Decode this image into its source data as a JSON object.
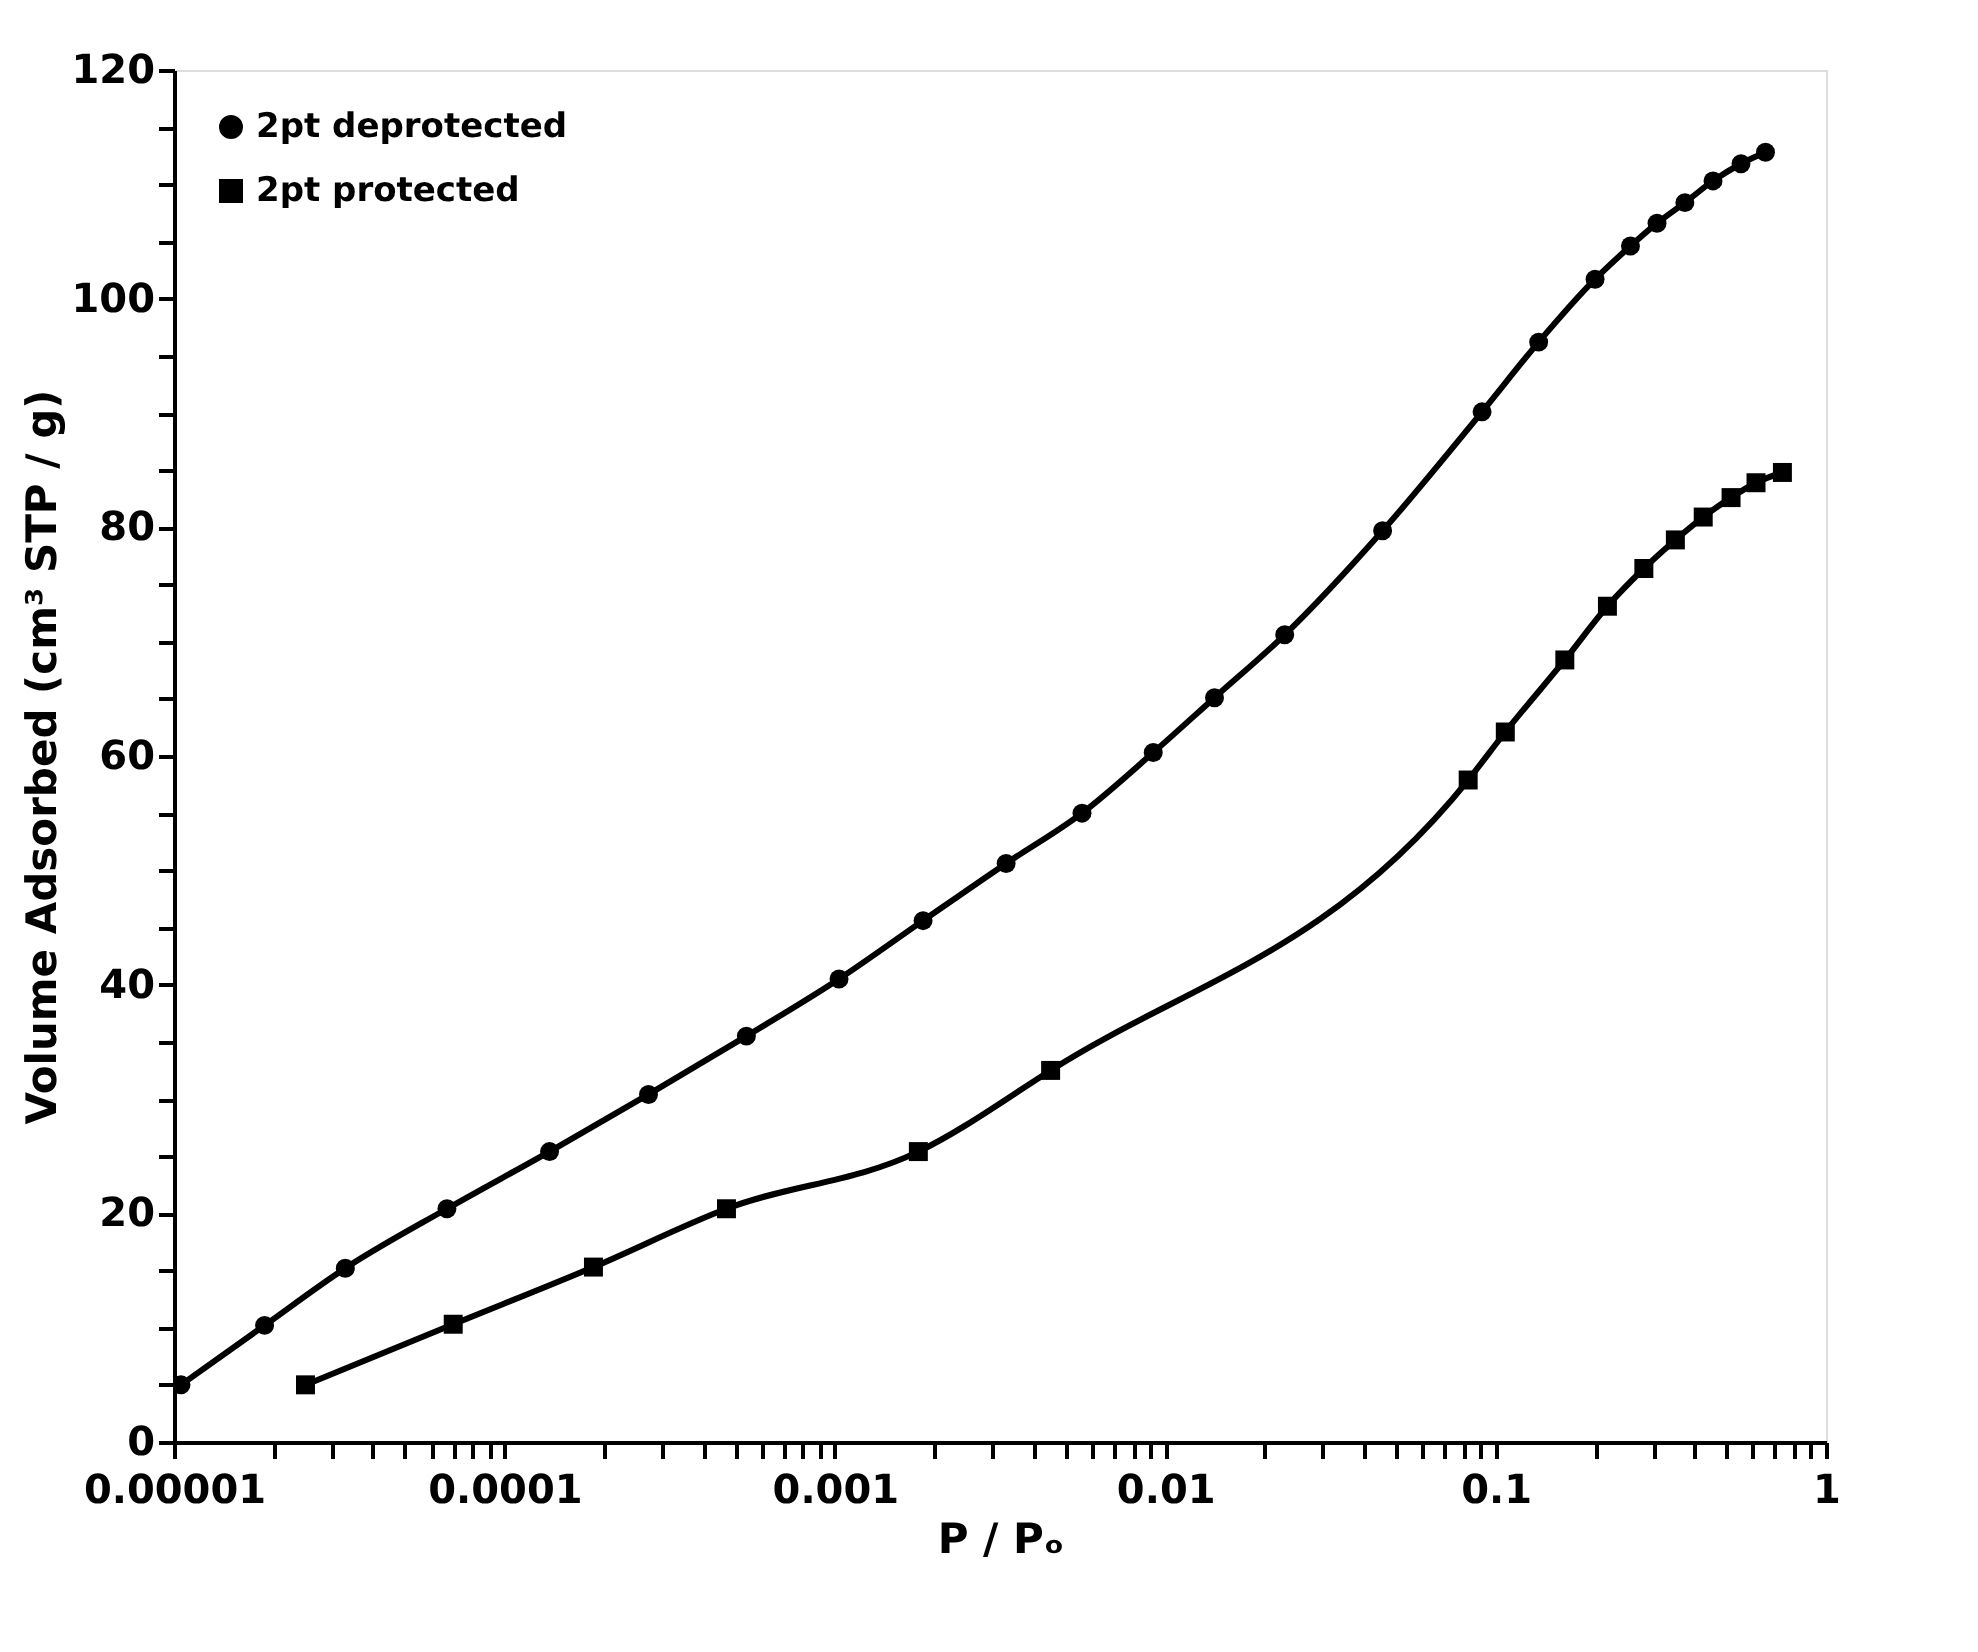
{
  "chart_data": {
    "type": "line",
    "xlabel": "P / Pₒ",
    "ylabel": "Volume Adsorbed (cm³ STP / g)",
    "log": "x",
    "xlim": [
      1e-05,
      1
    ],
    "ylim": [
      0,
      120
    ],
    "xticks": [
      {
        "value": 1e-05,
        "label": "0.00001"
      },
      {
        "value": 2e-05,
        "label": null
      },
      {
        "value": 3e-05,
        "label": null
      },
      {
        "value": 4e-05,
        "label": null
      },
      {
        "value": 5e-05,
        "label": null
      },
      {
        "value": 6e-05,
        "label": null
      },
      {
        "value": 7e-05,
        "label": null
      },
      {
        "value": 8e-05,
        "label": null
      },
      {
        "value": 9e-05,
        "label": null
      },
      0.0001,
      {
        "value": 0.0002,
        "label": null
      },
      {
        "value": 0.0003,
        "label": null
      },
      {
        "value": 0.0004,
        "label": null
      },
      {
        "value": 0.0005,
        "label": null
      },
      {
        "value": 0.0006,
        "label": null
      },
      {
        "value": 0.0007,
        "label": null
      },
      {
        "value": 0.0008,
        "label": null
      },
      {
        "value": 0.0009,
        "label": null
      },
      0.001,
      {
        "value": 0.002,
        "label": null
      },
      {
        "value": 0.003,
        "label": null
      },
      {
        "value": 0.004,
        "label": null
      },
      {
        "value": 0.005,
        "label": null
      },
      {
        "value": 0.006,
        "label": null
      },
      {
        "value": 0.007,
        "label": null
      },
      {
        "value": 0.008,
        "label": null
      },
      {
        "value": 0.009,
        "label": null
      },
      0.01,
      {
        "value": 0.02,
        "label": null
      },
      {
        "value": 0.03,
        "label": null
      },
      {
        "value": 0.04,
        "label": null
      },
      {
        "value": 0.05,
        "label": null
      },
      {
        "value": 0.06,
        "label": null
      },
      {
        "value": 0.07,
        "label": null
      },
      {
        "value": 0.08,
        "label": null
      },
      {
        "value": 0.09,
        "label": null
      },
      0.1,
      {
        "value": 0.2,
        "label": null
      },
      {
        "value": 0.3,
        "label": null
      },
      {
        "value": 0.4,
        "label": null
      },
      {
        "value": 0.5,
        "label": null
      },
      {
        "value": 0.6,
        "label": null
      },
      {
        "value": 0.7,
        "label": null
      },
      {
        "value": 0.8,
        "label": null
      },
      {
        "value": 0.9,
        "label": null
      },
      1
    ],
    "yticks": [
      0,
      {
        "value": 5,
        "label": null
      },
      {
        "value": 10,
        "label": null
      },
      {
        "value": 15,
        "label": null
      },
      20,
      {
        "value": 25,
        "label": null
      },
      {
        "value": 30,
        "label": null
      },
      {
        "value": 35,
        "label": null
      },
      40,
      {
        "value": 45,
        "label": null
      },
      {
        "value": 50,
        "label": null
      },
      {
        "value": 55,
        "label": null
      },
      60,
      {
        "value": 65,
        "label": null
      },
      {
        "value": 70,
        "label": null
      },
      {
        "value": 75,
        "label": null
      },
      80,
      {
        "value": 85,
        "label": null
      },
      {
        "value": 90,
        "label": null
      },
      {
        "value": 95,
        "label": null
      },
      100,
      {
        "value": 105,
        "label": null
      },
      {
        "value": 110,
        "label": null
      },
      {
        "value": 115,
        "label": null
      },
      120
    ],
    "grid": false,
    "legend": "top left",
    "line_style": "solid",
    "series": [
      {
        "name": "2pt  deprotected",
        "color": "#000000",
        "marker": "circle",
        "x": [
          1.05e-05,
          1.88e-05,
          3.3e-05,
          6.7e-05,
          0.000137,
          0.000273,
          0.00054,
          0.00103,
          0.00185,
          0.0033,
          0.0056,
          0.0092,
          0.0141,
          0.023,
          0.0455,
          0.091,
          0.135,
          0.2,
          0.256,
          0.308,
          0.374,
          0.455,
          0.553,
          0.656
        ],
        "values": [
          5,
          10.2,
          15.2,
          20.4,
          25.4,
          30.4,
          35.5,
          40.5,
          45.6,
          50.6,
          55,
          60.3,
          65.1,
          70.6,
          79.7,
          90.1,
          96.2,
          101.7,
          104.6,
          106.6,
          108.4,
          110.3,
          111.8,
          112.8
        ]
      },
      {
        "name": "2pt  protected",
        "color": "#000000",
        "marker": "square",
        "x": [
          2.5e-05,
          7e-05,
          0.000186,
          0.00047,
          0.00179,
          0.0045,
          0.0826,
          0.107,
          0.162,
          0.218,
          0.281,
          0.35,
          0.425,
          0.516,
          0.614,
          0.738
        ],
        "values": [
          5,
          10.3,
          15.3,
          20.4,
          25.4,
          32.5,
          57.9,
          62.1,
          68.4,
          73.1,
          76.4,
          78.9,
          80.9,
          82.6,
          83.9,
          84.8
        ]
      }
    ]
  }
}
